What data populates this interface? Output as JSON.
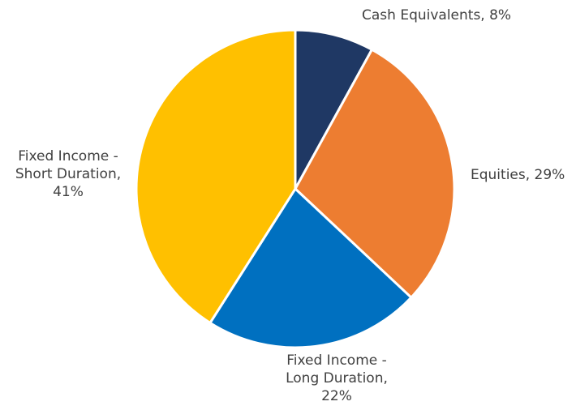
{
  "chart_data": {
    "type": "pie",
    "title": "",
    "start_angle_deg": 0,
    "direction": "clockwise",
    "slices": [
      {
        "name": "Cash Equivalents",
        "value": 8,
        "color": "#1f3864",
        "label_lines": [
          "Cash Equivalents, 8%"
        ]
      },
      {
        "name": "Equities",
        "value": 29,
        "color": "#ed7d31",
        "label_lines": [
          "Equities, 29%"
        ]
      },
      {
        "name": "Fixed Income - Long Duration",
        "value": 22,
        "color": "#0070c0",
        "label_lines": [
          "Fixed Income -",
          "Long Duration,",
          "22%"
        ]
      },
      {
        "name": "Fixed Income - Short Duration",
        "value": 41,
        "color": "#ffc000",
        "label_lines": [
          "Fixed Income -",
          "Short Duration,",
          "41%"
        ]
      }
    ]
  }
}
